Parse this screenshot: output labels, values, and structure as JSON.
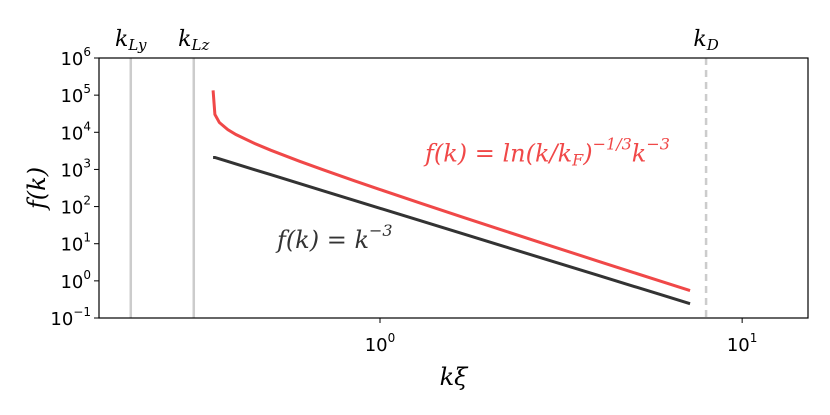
{
  "chart_data": {
    "type": "line",
    "xlabel": {
      "base": "kξ"
    },
    "ylabel": {
      "base": "f(k)"
    },
    "log_x": true,
    "log_y": true,
    "xlim": [
      0.1675,
      15.2
    ],
    "ylim": [
      0.1,
      1000000
    ],
    "xticks": [
      {
        "value": 1,
        "label": "10",
        "sup": "0"
      },
      {
        "value": 10,
        "label": "10",
        "sup": "1"
      }
    ],
    "yticks": [
      {
        "value": 0.1,
        "label": "10",
        "sup": "−1"
      },
      {
        "value": 1,
        "label": "10",
        "sup": "0"
      },
      {
        "value": 10,
        "label": "10",
        "sup": "1"
      },
      {
        "value": 100,
        "label": "10",
        "sup": "2"
      },
      {
        "value": 1000,
        "label": "10",
        "sup": "3"
      },
      {
        "value": 10000,
        "label": "10",
        "sup": "4"
      },
      {
        "value": 100000,
        "label": "10",
        "sup": "5"
      },
      {
        "value": 1000000,
        "label": "10",
        "sup": "6"
      }
    ],
    "x": [
      0.346,
      0.35,
      0.36,
      0.38,
      0.4,
      0.45,
      0.5,
      0.6,
      0.7,
      0.85,
      1,
      1.3,
      1.7,
      2.2,
      3,
      4,
      5,
      6,
      7.18
    ],
    "series": [
      {
        "color": "#f04848",
        "values": [
          134700,
          30160,
          18390,
          11750,
          8714,
          5019,
          3270,
          1655,
          959.7,
          494.4,
          287.2,
          121.4,
          51.07,
          22.41,
          8.395,
          3.396,
          1.689,
          0.9563,
          0.547
        ],
        "label": [
          {
            "text": "f(k) = ln(k/k",
            "style": "normal"
          },
          {
            "text": "F",
            "style": "sub"
          },
          {
            "text": ")",
            "style": "normal"
          },
          {
            "text": "−1/3",
            "style": "sup"
          },
          {
            "text": "k",
            "style": "normal"
          },
          {
            "text": "−3",
            "style": "sup"
          }
        ],
        "label_at": [
          2.9,
          2500
        ]
      },
      {
        "color": "#333333",
        "values": [
          2099,
          2099,
          1929,
          1640,
          1406,
          987.7,
          720,
          416.7,
          262.4,
          146.5,
          90,
          40.97,
          18.32,
          8.452,
          3.333,
          1.406,
          0.72,
          0.4167,
          0.2432
        ],
        "label": [
          {
            "text": "f(k) = k",
            "style": "normal"
          },
          {
            "text": "−3",
            "style": "sup"
          }
        ],
        "label_at": [
          0.75,
          12
        ]
      }
    ],
    "vlines": [
      {
        "x": 0.205,
        "color": "#cccccc",
        "dash": false,
        "base": "k",
        "sub": "Ly"
      },
      {
        "x": 0.306,
        "color": "#cccccc",
        "dash": false,
        "base": "k",
        "sub": "Lz"
      },
      {
        "x": 7.95,
        "color": "#cccccc",
        "dash": true,
        "base": "k",
        "sub": "D"
      }
    ]
  }
}
